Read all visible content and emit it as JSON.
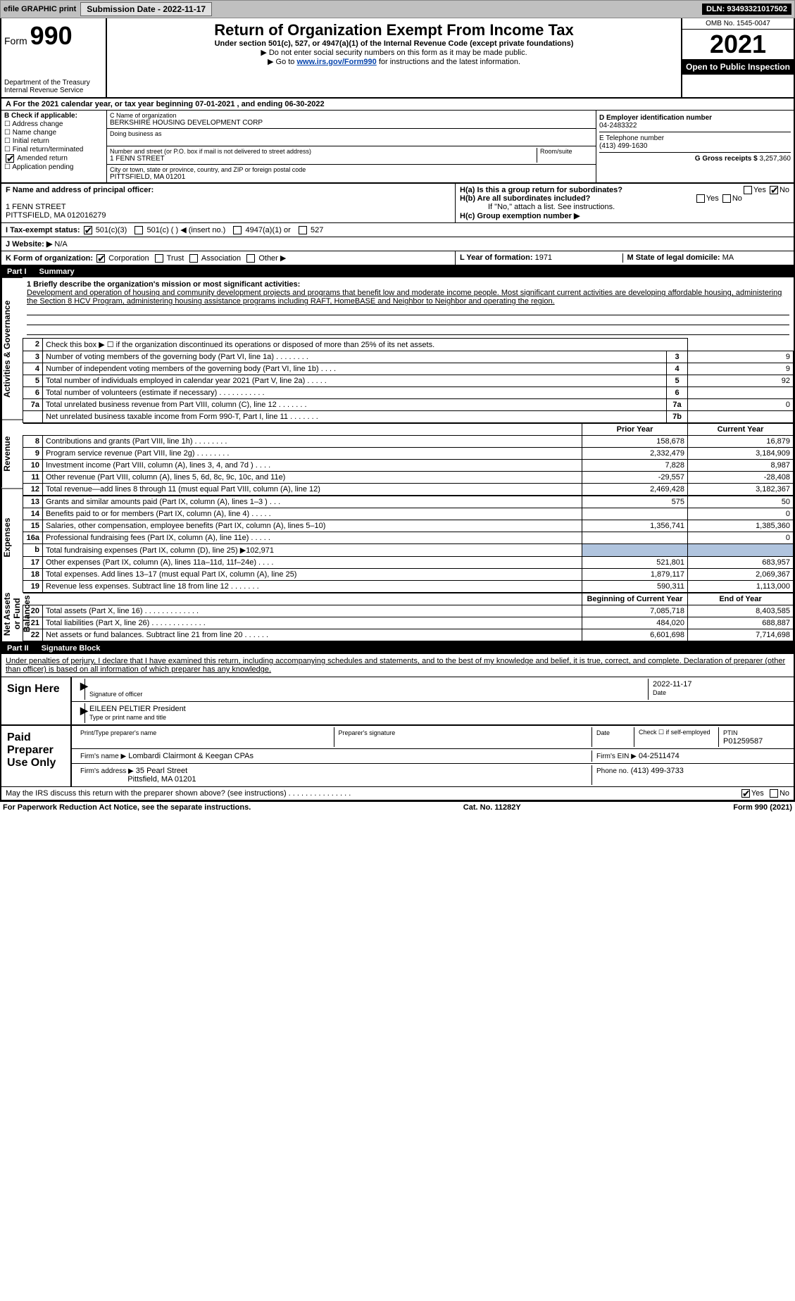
{
  "topbar": {
    "efile": "efile GRAPHIC print",
    "submission_label": "Submission Date - 2022-11-17",
    "dln": "DLN: 93493321017502"
  },
  "header": {
    "form_label": "Form",
    "form_number": "990",
    "dept1": "Department of the Treasury",
    "dept2": "Internal Revenue Service",
    "title": "Return of Organization Exempt From Income Tax",
    "subtitle": "Under section 501(c), 527, or 4947(a)(1) of the Internal Revenue Code (except private foundations)",
    "note1": "▶ Do not enter social security numbers on this form as it may be made public.",
    "note2_pre": "▶ Go to ",
    "note2_link": "www.irs.gov/Form990",
    "note2_post": " for instructions and the latest information.",
    "omb": "OMB No. 1545-0047",
    "year": "2021",
    "open": "Open to Public Inspection"
  },
  "taxyear": {
    "line": "A For the 2021 calendar year, or tax year beginning 07-01-2021     , and ending 06-30-2022"
  },
  "boxB": {
    "title": "B Check if applicable:",
    "items": [
      "Address change",
      "Name change",
      "Initial return",
      "Final return/terminated",
      "Amended return",
      "Application pending"
    ],
    "checked_idx": 4
  },
  "boxC": {
    "name_label": "C Name of organization",
    "name": "BERKSHIRE HOUSING DEVELOPMENT CORP",
    "dba_label": "Doing business as",
    "street_label": "Number and street (or P.O. box if mail is not delivered to street address)",
    "room_label": "Room/suite",
    "street": "1 FENN STREET",
    "city_label": "City or town, state or province, country, and ZIP or foreign postal code",
    "city": "PITTSFIELD, MA  01201"
  },
  "boxD": {
    "ein_label": "D Employer identification number",
    "ein": "04-2483322",
    "phone_label": "E Telephone number",
    "phone": "(413) 499-1630",
    "gross_label": "G Gross receipts $",
    "gross": "3,257,360"
  },
  "boxF": {
    "label": "F  Name and address of principal officer:",
    "addr1": "1 FENN STREET",
    "addr2": "PITTSFIELD, MA  012016279"
  },
  "boxH": {
    "a": "H(a)  Is this a group return for subordinates?",
    "b": "H(b)  Are all subordinates included?",
    "b_note": "If \"No,\" attach a list. See instructions.",
    "c": "H(c)  Group exemption number ▶",
    "yes": "Yes",
    "no": "No"
  },
  "boxI": {
    "label": "I    Tax-exempt status:",
    "opts": [
      "501(c)(3)",
      "501(c) (  ) ◀ (insert no.)",
      "4947(a)(1) or",
      "527"
    ]
  },
  "boxJ": {
    "label": "J   Website: ▶",
    "val": "N/A"
  },
  "boxK": {
    "label": "K Form of organization:",
    "opts": [
      "Corporation",
      "Trust",
      "Association",
      "Other ▶"
    ]
  },
  "boxL": {
    "label": "L Year of formation:",
    "val": "1971"
  },
  "boxM": {
    "label": "M State of legal domicile:",
    "val": "MA"
  },
  "part1": {
    "header": "Part I",
    "title": "Summary",
    "mission_label": "1   Briefly describe the organization's mission or most significant activities:",
    "mission": "Development and operation of housing and community development projects and programs that benefit low and moderate income people. Most significant current activities are developing affordable housing, administering the Section 8 HCV Program, administering housing assistance programs including RAFT, HomeBASE and Neighbor to Neighbor and operating the region.",
    "line2": "Check this box ▶ ☐  if the organization discontinued its operations or disposed of more than 25% of its net assets.",
    "gov_rows": [
      {
        "n": "3",
        "label": "Number of voting members of the governing body (Part VI, line 1a)   .    .    .    .    .    .    .    .",
        "k": "3",
        "v": "9"
      },
      {
        "n": "4",
        "label": "Number of independent voting members of the governing body (Part VI, line 1b)   .    .    .    .",
        "k": "4",
        "v": "9"
      },
      {
        "n": "5",
        "label": "Total number of individuals employed in calendar year 2021 (Part V, line 2a)   .    .    .    .    .",
        "k": "5",
        "v": "92"
      },
      {
        "n": "6",
        "label": "Total number of volunteers (estimate if necessary)   .    .    .    .    .    .    .    .    .    .    .",
        "k": "6",
        "v": ""
      },
      {
        "n": "7a",
        "label": "Total unrelated business revenue from Part VIII, column (C), line 12   .    .    .    .    .    .    .",
        "k": "7a",
        "v": "0"
      },
      {
        "n": "",
        "label": "Net unrelated business taxable income from Form 990-T, Part I, line 11   .    .    .    .    .    .    .",
        "k": "7b",
        "v": ""
      }
    ],
    "col_prior": "Prior Year",
    "col_current": "Current Year",
    "revenue_rows": [
      {
        "n": "8",
        "label": "Contributions and grants (Part VIII, line 1h)   .    .    .    .    .    .    .    .",
        "p": "158,678",
        "c": "16,879"
      },
      {
        "n": "9",
        "label": "Program service revenue (Part VIII, line 2g)   .    .    .    .    .    .    .    .",
        "p": "2,332,479",
        "c": "3,184,909"
      },
      {
        "n": "10",
        "label": "Investment income (Part VIII, column (A), lines 3, 4, and 7d )   .    .    .    .",
        "p": "7,828",
        "c": "8,987"
      },
      {
        "n": "11",
        "label": "Other revenue (Part VIII, column (A), lines 5, 6d, 8c, 9c, 10c, and 11e)",
        "p": "-29,557",
        "c": "-28,408"
      },
      {
        "n": "12",
        "label": "Total revenue—add lines 8 through 11 (must equal Part VIII, column (A), line 12)",
        "p": "2,469,428",
        "c": "3,182,367"
      }
    ],
    "expense_rows": [
      {
        "n": "13",
        "label": "Grants and similar amounts paid (Part IX, column (A), lines 1–3 )   .    .    .",
        "p": "575",
        "c": "50"
      },
      {
        "n": "14",
        "label": "Benefits paid to or for members (Part IX, column (A), line 4)   .    .    .    .    .",
        "p": "",
        "c": "0"
      },
      {
        "n": "15",
        "label": "Salaries, other compensation, employee benefits (Part IX, column (A), lines 5–10)",
        "p": "1,356,741",
        "c": "1,385,360"
      },
      {
        "n": "16a",
        "label": "Professional fundraising fees (Part IX, column (A), line 11e)   .    .    .    .    .",
        "p": "",
        "c": "0"
      },
      {
        "n": "b",
        "label": "Total fundraising expenses (Part IX, column (D), line 25) ▶102,971",
        "p": "__shade__",
        "c": "__shade__"
      },
      {
        "n": "17",
        "label": "Other expenses (Part IX, column (A), lines 11a–11d, 11f–24e)   .    .    .    .",
        "p": "521,801",
        "c": "683,957"
      },
      {
        "n": "18",
        "label": "Total expenses. Add lines 13–17 (must equal Part IX, column (A), line 25)",
        "p": "1,879,117",
        "c": "2,069,367"
      },
      {
        "n": "19",
        "label": "Revenue less expenses. Subtract line 18 from line 12   .    .    .    .    .    .    .",
        "p": "590,311",
        "c": "1,113,000"
      }
    ],
    "col_begin": "Beginning of Current Year",
    "col_end": "End of Year",
    "net_rows": [
      {
        "n": "20",
        "label": "Total assets (Part X, line 16)   .    .    .    .    .    .    .    .    .    .    .    .    .",
        "p": "7,085,718",
        "c": "8,403,585"
      },
      {
        "n": "21",
        "label": "Total liabilities (Part X, line 26)   .    .    .    .    .    .    .    .    .    .    .    .    .",
        "p": "484,020",
        "c": "688,887"
      },
      {
        "n": "22",
        "label": "Net assets or fund balances. Subtract line 21 from line 20   .    .    .    .    .    .",
        "p": "6,601,698",
        "c": "7,714,698"
      }
    ],
    "sidetabs": [
      "Activities & Governance",
      "Revenue",
      "Expenses",
      "Net Assets or Fund Balances"
    ]
  },
  "part2": {
    "header": "Part II",
    "title": "Signature Block",
    "decl": "Under penalties of perjury, I declare that I have examined this return, including accompanying schedules and statements, and to the best of my knowledge and belief, it is true, correct, and complete. Declaration of preparer (other than officer) is based on all information of which preparer has any knowledge.",
    "sign_here": "Sign Here",
    "sig_officer": "Signature of officer",
    "date": "Date",
    "sig_date": "2022-11-17",
    "name_title": "EILEEN PELTIER  President",
    "name_title_label": "Type or print name and title",
    "paid": "Paid Preparer Use Only",
    "prep_name_label": "Print/Type preparer's name",
    "prep_sig_label": "Preparer's signature",
    "prep_date_label": "Date",
    "check_self": "Check ☐ if self-employed",
    "ptin_label": "PTIN",
    "ptin": "P01259587",
    "firm_name_label": "Firm's name    ▶",
    "firm_name": "Lombardi Clairmont & Keegan CPAs",
    "firm_ein_label": "Firm's EIN ▶",
    "firm_ein": "04-2511474",
    "firm_addr_label": "Firm's address ▶",
    "firm_addr1": "35 Pearl Street",
    "firm_addr2": "Pittsfield, MA  01201",
    "firm_phone_label": "Phone no.",
    "firm_phone": "(413) 499-3733",
    "discuss": "May the IRS discuss this return with the preparer shown above? (see instructions)   .    .    .    .    .    .    .    .    .    .    .    .    .    .    .",
    "yes": "Yes",
    "no": "No"
  },
  "footer": {
    "left": "For Paperwork Reduction Act Notice, see the separate instructions.",
    "mid": "Cat. No. 11282Y",
    "right": "Form 990 (2021)"
  },
  "colors": {
    "topbar_bg": "#c0c0c0",
    "black": "#000000",
    "link": "#0645ad",
    "shade": "#b0c4de"
  }
}
